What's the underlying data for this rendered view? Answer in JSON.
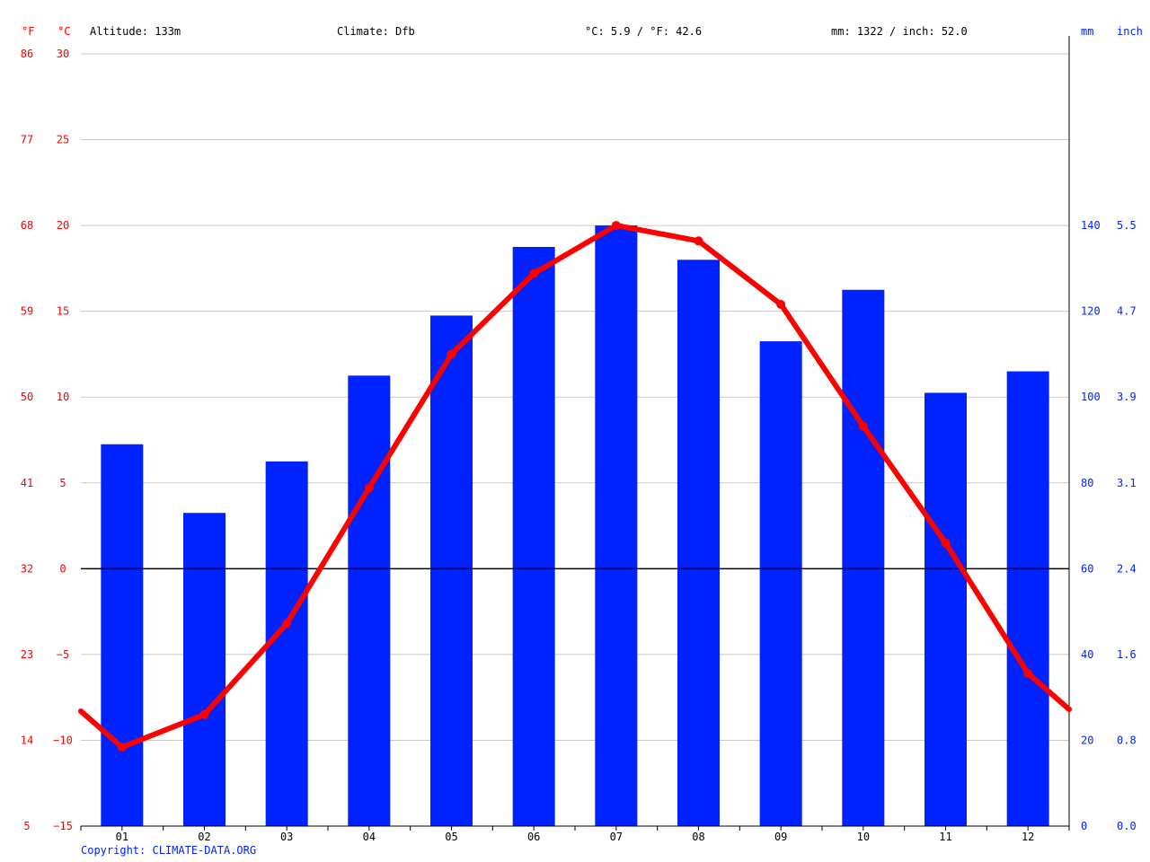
{
  "header": {
    "altitude": "Altitude: 133m",
    "climate": "Climate: Dfb",
    "temperature": "°C: 5.9 / °F: 42.6",
    "precipitation": "mm: 1322 / inch: 52.0"
  },
  "units": {
    "fahrenheit": "°F",
    "celsius": "°C",
    "mm": "mm",
    "inch": "inch"
  },
  "copyright": "Copyright: CLIMATE-DATA.ORG",
  "colors": {
    "temperature": "#ff0000",
    "precipitation": "#0022ff",
    "grid": "#c8c8c8",
    "axis": "#000000"
  },
  "chart_data": {
    "type": "bar",
    "categories": [
      "01",
      "02",
      "03",
      "04",
      "05",
      "06",
      "07",
      "08",
      "09",
      "10",
      "11",
      "12"
    ],
    "series": [
      {
        "type": "bar",
        "axis": "right",
        "values": [
          89,
          73,
          85,
          105,
          119,
          135,
          140,
          132,
          113,
          125,
          101,
          106
        ]
      },
      {
        "type": "line",
        "axis": "left",
        "values": [
          -10.4,
          -8.5,
          -3.2,
          4.7,
          12.5,
          17.2,
          20.0,
          19.1,
          15.4,
          8.3,
          1.5,
          -6.1
        ],
        "edge_values": [
          -8.3,
          -8.2
        ]
      }
    ],
    "y_left": {
      "label": "°C",
      "ylim": [
        -15,
        30
      ],
      "ticks": [
        30,
        25,
        20,
        15,
        10,
        5,
        0,
        -5,
        -10,
        -15
      ]
    },
    "y_left_f": {
      "label": "°F",
      "ticks": [
        "86",
        "77",
        "68",
        "59",
        "50",
        "41",
        "32",
        "23",
        "14",
        "5"
      ]
    },
    "y_right": {
      "label": "mm",
      "ylim": [
        0,
        140
      ],
      "ticks": [
        140,
        120,
        100,
        80,
        60,
        40,
        20,
        0
      ]
    },
    "y_right_inch": {
      "label": "inch",
      "ticks": [
        "5.5",
        "4.7",
        "3.9",
        "3.1",
        "2.4",
        "1.6",
        "0.8",
        "0.0"
      ]
    },
    "grid": true
  }
}
